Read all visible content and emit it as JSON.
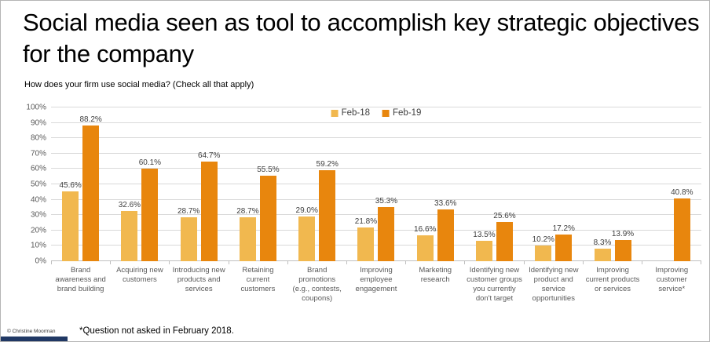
{
  "slide": {
    "title": "Social media seen as tool to accomplish key strategic objectives for the company",
    "question": "How does your firm use social media? (Check all that apply)",
    "footnote": "*Question not asked in February 2018.",
    "copyright": "© Christine Moorman"
  },
  "colors": {
    "feb18": "#F1B84F",
    "feb19": "#E8860D",
    "gridline": "#D9D9D9",
    "axis_line": "#BFBFBF",
    "axis_text": "#595959",
    "value_text": "#404040",
    "footer_bar": "#203864"
  },
  "chart_data": {
    "type": "bar",
    "title": "",
    "xlabel": "",
    "ylabel": "",
    "ylim": [
      0,
      100
    ],
    "ytick_step": 10,
    "ytick_suffix": "%",
    "grid": true,
    "legend_position": "top-center",
    "value_label_format": "one_decimal_percent",
    "categories": [
      "Brand awareness and brand building",
      "Acquiring new customers",
      "Introducing new products and services",
      "Retaining current customers",
      "Brand promotions (e.g., contests, coupons)",
      "Improving employee engagement",
      "Marketing research",
      "Identifying new customer groups you currently don't target",
      "Identifying new product and service opportunities",
      "Improving current products or services",
      "Improving customer service*"
    ],
    "series": [
      {
        "name": "Feb-18",
        "color": "#F1B84F",
        "values": [
          45.6,
          32.6,
          28.7,
          28.7,
          29.0,
          21.8,
          16.6,
          13.5,
          10.2,
          8.3,
          null
        ]
      },
      {
        "name": "Feb-19",
        "color": "#E8860D",
        "values": [
          88.2,
          60.1,
          64.7,
          55.5,
          59.2,
          35.3,
          33.6,
          25.6,
          17.2,
          13.9,
          40.8
        ]
      }
    ]
  }
}
